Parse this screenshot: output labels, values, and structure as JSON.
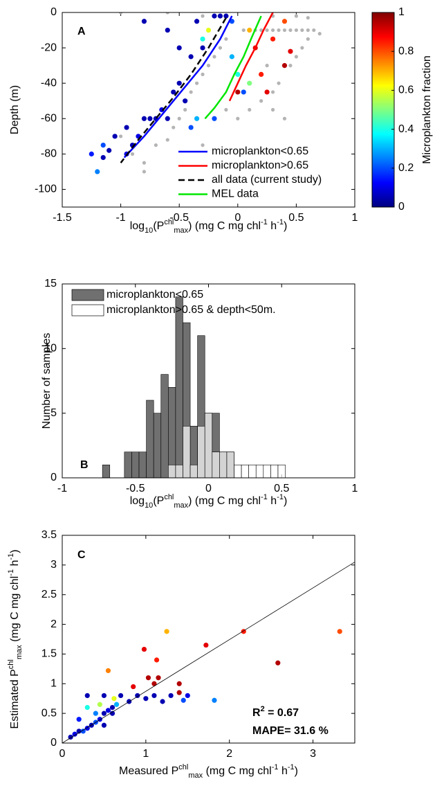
{
  "chart_data": [
    {
      "type": "scatter",
      "panel_label": "A",
      "xlim": [
        -1.5,
        1
      ],
      "xticks": [
        -1.5,
        -1,
        -0.5,
        0,
        0.5,
        1
      ],
      "ylim": [
        -110,
        0
      ],
      "yticks": [
        -100,
        -80,
        -60,
        -40,
        -20,
        0
      ],
      "xlabel": [
        {
          "text": "log"
        },
        {
          "text": "10",
          "shift": "sub"
        },
        {
          "text": "(P"
        },
        {
          "text": "chl",
          "shift": "super"
        },
        {
          "text": "max",
          "shift": "sub"
        },
        {
          "text": ") (mg C mg chl"
        },
        {
          "text": "-1",
          "shift": "super"
        },
        {
          "text": " h"
        },
        {
          "text": "-1",
          "shift": "super"
        },
        {
          "text": ")"
        }
      ],
      "ylabel": "Depth (m)",
      "colormap": "jet",
      "clim": [
        0,
        1
      ],
      "colorbar": {
        "label": "Microplankton fraction",
        "ticks": [
          0,
          0.2,
          0.4,
          0.6,
          0.8,
          1
        ]
      },
      "series": [
        {
          "color": "#b4b4b4",
          "x": [
            -0.9,
            -0.8,
            -0.7,
            -0.6,
            -0.55,
            -0.5,
            -0.45,
            -0.4,
            -0.35,
            -0.3,
            -0.25,
            -0.2,
            -0.15,
            -0.1,
            0.05,
            0.1,
            0.15,
            0.2,
            0.25,
            0.3,
            0.35,
            0.4,
            0.45,
            0.5,
            0.55,
            0.6,
            0.65,
            -0.1,
            0,
            0.1,
            0.2,
            0.3,
            0.35,
            0.45,
            0.5,
            0.55,
            0.6,
            0.7,
            -0.3,
            -1,
            -0.6,
            -0.3,
            0.3,
            0.5,
            0.6,
            0.25,
            0.4,
            0.3,
            -0.8,
            -1
          ],
          "y": [
            -80,
            -85,
            -75,
            -72,
            -65,
            -60,
            -55,
            -45,
            -40,
            -35,
            -30,
            -25,
            -20,
            -15,
            -10,
            -10,
            -10,
            -10,
            -10,
            -10,
            -10,
            -10,
            -10,
            -10,
            -10,
            -10,
            -10,
            -55,
            -60,
            -55,
            -50,
            -45,
            -40,
            -30,
            -25,
            -20,
            -15,
            -12,
            -75,
            0,
            0,
            -2,
            -2,
            -2,
            -3,
            -30,
            -60,
            -55,
            -90,
            -70
          ]
        },
        {
          "x": [
            -1.2,
            -1.25,
            -1.15,
            -1.1,
            -1.05,
            -0.95,
            -0.9,
            -0.85,
            -0.8,
            -0.75,
            -0.7,
            -0.65,
            -0.6,
            -0.55,
            -0.5,
            -0.45,
            -0.4,
            -0.35,
            -0.5,
            -0.4,
            -0.3,
            -0.35,
            -0.6,
            -0.8,
            -0.2,
            -0.15,
            -0.1,
            -0.25,
            -0.3,
            -0.05,
            0,
            0.05,
            0.1,
            -0.2,
            0.15,
            0.3,
            0.4,
            0.4,
            0.45,
            0.2,
            0.25,
            0,
            0.1,
            -0.05,
            -0.95,
            -1.15
          ],
          "y": [
            -90,
            -80,
            -75,
            -78,
            -70,
            -80,
            -75,
            -70,
            -60,
            -60,
            -60,
            -55,
            -60,
            -45,
            -40,
            -50,
            -65,
            -60,
            -20,
            -25,
            -20,
            -5,
            -10,
            -5,
            -2,
            -2,
            -2,
            -10,
            -15,
            -25,
            -35,
            -45,
            -40,
            -60,
            -20,
            -15,
            -5,
            -30,
            -22,
            -35,
            -45,
            -45,
            -10,
            -5,
            -65,
            -82
          ],
          "c": [
            0.25,
            0.15,
            0.2,
            0.05,
            0.05,
            0.1,
            0.05,
            0.1,
            0.05,
            0.05,
            0.05,
            0.1,
            0.05,
            0.05,
            0.05,
            0.05,
            0.2,
            0.3,
            0.05,
            0.05,
            0.05,
            0.05,
            0.05,
            0.05,
            0.05,
            0.05,
            0.05,
            0.6,
            0.4,
            0.3,
            0.4,
            0.2,
            0.5,
            0.2,
            0.9,
            0.85,
            0.8,
            0.95,
            0.9,
            0.85,
            0.9,
            0.95,
            0.7,
            0.2,
            0.05,
            0.05
          ]
        }
      ],
      "lines": [
        {
          "name": "microplankton<0.65",
          "color": "#0000ff",
          "linewidth": 2.5,
          "x": [
            -0.05,
            -0.15,
            -0.3,
            -0.45,
            -0.6,
            -0.8,
            -0.97
          ],
          "y": [
            -2,
            -15,
            -30,
            -42,
            -54,
            -70,
            -82
          ]
        },
        {
          "name": "microplankton>0.65",
          "color": "#ff0000",
          "linewidth": 2.5,
          "x": [
            0.3,
            0.22,
            0.15,
            0.07,
            0,
            -0.07
          ],
          "y": [
            0,
            -10,
            -20,
            -30,
            -40,
            -50
          ]
        },
        {
          "name": "all data (current study)",
          "color": "#000000",
          "dash": true,
          "linewidth": 2.5,
          "x": [
            -0.1,
            -0.25,
            -0.4,
            -0.55,
            -0.7,
            -0.85,
            -1
          ],
          "y": [
            -3,
            -20,
            -35,
            -48,
            -60,
            -72,
            -85
          ]
        },
        {
          "name": "MEL data",
          "color": "#00e600",
          "linewidth": 2.5,
          "x": [
            0.2,
            0.12,
            0.05,
            -0.03,
            -0.1,
            -0.2,
            -0.28
          ],
          "y": [
            -2,
            -14,
            -25,
            -35,
            -45,
            -54,
            -60
          ]
        }
      ],
      "legend": "lower right"
    },
    {
      "type": "histogram",
      "panel_label": "B",
      "xlim": [
        -1,
        1
      ],
      "xticks": [
        -1,
        -0.5,
        0,
        0.5,
        1
      ],
      "ylim": [
        0,
        15
      ],
      "yticks": [
        0,
        5,
        10,
        15
      ],
      "xlabel": [
        {
          "text": "log"
        },
        {
          "text": "10",
          "shift": "sub"
        },
        {
          "text": "(P"
        },
        {
          "text": "chl",
          "shift": "super"
        },
        {
          "text": "max",
          "shift": "sub"
        },
        {
          "text": ") (mg C mg chl"
        },
        {
          "text": "-1",
          "shift": "super"
        },
        {
          "text": " h"
        },
        {
          "text": "-1",
          "shift": "super"
        },
        {
          "text": ")"
        }
      ],
      "ylabel": "Number of samples",
      "bins": [
        -0.725,
        -0.675,
        -0.625,
        -0.575,
        -0.525,
        -0.475,
        -0.425,
        -0.375,
        -0.325,
        -0.275,
        -0.225,
        -0.175,
        -0.125,
        -0.075,
        -0.025,
        0.025,
        0.075,
        0.125,
        0.175,
        0.225,
        0.275,
        0.325,
        0.375,
        0.425,
        0.475,
        0.525
      ],
      "series": [
        {
          "name": "microplankton<0.65",
          "color": "#707070",
          "counts": [
            1,
            0,
            0,
            2,
            2,
            2,
            6,
            5,
            8,
            7,
            14,
            12,
            4,
            11,
            5,
            5,
            2,
            2,
            0,
            0,
            0,
            0,
            0,
            0,
            0
          ]
        },
        {
          "name": "microplankton>0.65 & depth<50m.",
          "color": "#ffffff",
          "counts": [
            0,
            0,
            0,
            0,
            0,
            0,
            0,
            0,
            0,
            1,
            1,
            4,
            1,
            4,
            5,
            2,
            2,
            2,
            1,
            1,
            1,
            1,
            1,
            1,
            1
          ]
        }
      ],
      "legend": "upper left"
    },
    {
      "type": "scatter",
      "panel_label": "C",
      "xlim": [
        0,
        3.5
      ],
      "xticks": [
        0,
        1,
        2,
        3
      ],
      "ylim": [
        0,
        3.5
      ],
      "yticks": [
        0,
        0.5,
        1,
        1.5,
        2,
        2.5,
        3,
        3.5
      ],
      "xlabel": [
        {
          "text": "Measured P"
        },
        {
          "text": "chl",
          "shift": "super"
        },
        {
          "text": "max",
          "shift": "sub"
        },
        {
          "text": " (mg C mg chl"
        },
        {
          "text": "-1",
          "shift": "super"
        },
        {
          "text": " h"
        },
        {
          "text": "-1",
          "shift": "super"
        },
        {
          "text": ")"
        }
      ],
      "ylabel": [
        {
          "text": "Estimated P"
        },
        {
          "text": "chl",
          "shift": "super"
        },
        {
          "text": "max",
          "shift": "sub"
        },
        {
          "text": " (mg C mg chl"
        },
        {
          "text": "-1",
          "shift": "super"
        },
        {
          "text": " h"
        },
        {
          "text": "-1",
          "shift": "super"
        },
        {
          "text": ")"
        }
      ],
      "colormap": "jet",
      "clim": [
        0,
        1
      ],
      "series": [
        {
          "x": [
            0.1,
            0.15,
            0.2,
            0.25,
            0.3,
            0.35,
            0.4,
            0.45,
            0.5,
            0.55,
            0.6,
            0.65,
            0.3,
            0.5,
            0.7,
            0.9,
            1.1,
            1.3,
            1.5,
            0.4,
            0.6,
            0.3,
            0.2,
            0.5,
            0.8,
            1.2,
            1.45,
            1.82,
            1,
            0.55,
            0.98,
            1.1,
            1.15,
            1.03,
            1.13,
            1.4,
            1.25,
            1.72,
            2.17,
            2.58,
            3.32,
            1.4,
            0.85,
            0.45,
            0.62
          ],
          "y": [
            0.1,
            0.15,
            0.2,
            0.2,
            0.25,
            0.3,
            0.35,
            0.4,
            0.5,
            0.55,
            0.6,
            0.65,
            0.8,
            0.8,
            0.8,
            0.8,
            0.8,
            0.8,
            0.8,
            0.5,
            0.5,
            0.6,
            0.4,
            0.3,
            0.7,
            0.7,
            0.72,
            0.72,
            0.75,
            1.22,
            1.58,
            1,
            1.1,
            1.1,
            1.4,
            1,
            1.88,
            1.65,
            1.88,
            1.35,
            1.88,
            0.85,
            0.95,
            0.65,
            0.75
          ],
          "c": [
            0.05,
            0.1,
            0.05,
            0.2,
            0.1,
            0.05,
            0.2,
            0.1,
            0.05,
            0.1,
            0.05,
            0.3,
            0.05,
            0.05,
            0.05,
            0.05,
            0.05,
            0.05,
            0.1,
            0.25,
            0.05,
            0.4,
            0.15,
            0.05,
            0.05,
            0.05,
            0.2,
            0.25,
            0.05,
            0.75,
            0.9,
            0.95,
            0.95,
            0.95,
            0.85,
            0.95,
            0.7,
            0.9,
            0.85,
            0.95,
            0.8,
            0.95,
            0.9,
            0.55,
            0.6
          ]
        }
      ],
      "lines": [
        {
          "color": "#000000",
          "linewidth": 0.8,
          "x": [
            0,
            3.5
          ],
          "y": [
            0,
            3.05
          ]
        }
      ],
      "annotations": [
        {
          "parts": [
            {
              "text": "R"
            },
            {
              "text": "2",
              "shift": "super"
            },
            {
              "text": " = 0.67"
            }
          ]
        },
        {
          "parts": [
            {
              "text": "MAPE= 31.6 %"
            }
          ]
        }
      ]
    }
  ]
}
